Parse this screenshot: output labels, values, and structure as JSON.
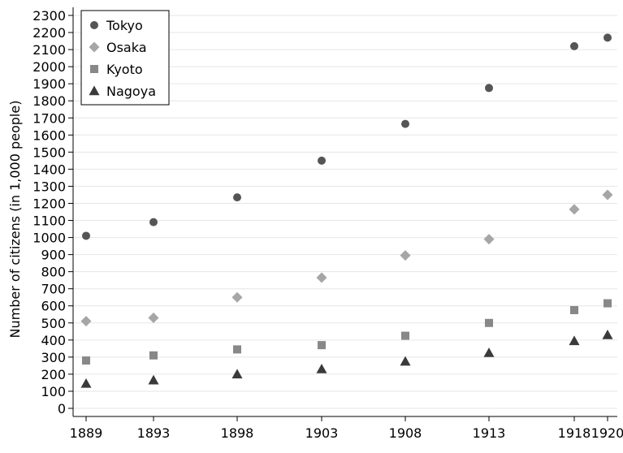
{
  "chart_data": {
    "type": "scatter",
    "title": "",
    "xlabel": "",
    "ylabel": "Number of citizens (in 1,000 people)",
    "x": [
      1889,
      1893,
      1898,
      1903,
      1908,
      1913,
      1918,
      1920
    ],
    "x_tick_labels": [
      "1889",
      "1893",
      "1898",
      "1903",
      "1908",
      "1913",
      "1918",
      "1920"
    ],
    "xlim": [
      1889,
      1920
    ],
    "ylim": [
      0,
      2300
    ],
    "y_tick_values": [
      0,
      100,
      200,
      300,
      400,
      500,
      600,
      700,
      800,
      900,
      1000,
      1100,
      1200,
      1300,
      1400,
      1500,
      1600,
      1700,
      1800,
      1900,
      2000,
      2100,
      2200,
      2300
    ],
    "y_tick_labels": [
      "0",
      "100",
      "200",
      "300",
      "400",
      "500",
      "600",
      "700",
      "800",
      "900",
      "1000",
      "1100",
      "1200",
      "1300",
      "1400",
      "1500",
      "1600",
      "1700",
      "1800",
      "1900",
      "2000",
      "2100",
      "2200",
      "2300"
    ],
    "grid": true,
    "legend_position": "top-left",
    "series": [
      {
        "name": "Tokyo",
        "marker": "circle",
        "color": "#555555",
        "values": [
          1010,
          1090,
          1235,
          1450,
          1665,
          1875,
          2120,
          2170
        ]
      },
      {
        "name": "Osaka",
        "marker": "diamond",
        "color": "#a6a6a6",
        "values": [
          510,
          530,
          650,
          765,
          895,
          990,
          1165,
          1250
        ]
      },
      {
        "name": "Kyoto",
        "marker": "square",
        "color": "#888888",
        "values": [
          280,
          310,
          345,
          370,
          425,
          500,
          575,
          615
        ]
      },
      {
        "name": "Nagoya",
        "marker": "triangle",
        "color": "#3a3a3a",
        "values": [
          145,
          165,
          200,
          230,
          275,
          325,
          395,
          430
        ]
      }
    ]
  }
}
